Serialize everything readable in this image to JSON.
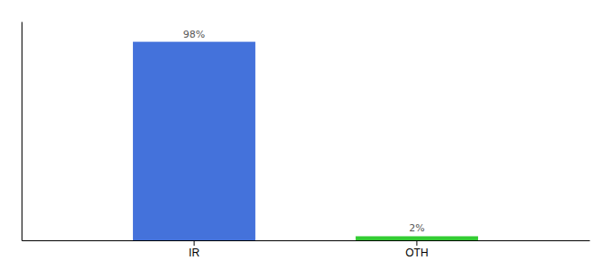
{
  "chart_data": {
    "type": "bar",
    "categories": [
      "IR",
      "OTH"
    ],
    "values": [
      98,
      2
    ],
    "value_labels": [
      "98%",
      "2%"
    ],
    "colors": [
      "#4472db",
      "#33cc33"
    ],
    "ylim": [
      0,
      108
    ],
    "data_labels": true,
    "tick_labels": "x",
    "grid": false
  }
}
